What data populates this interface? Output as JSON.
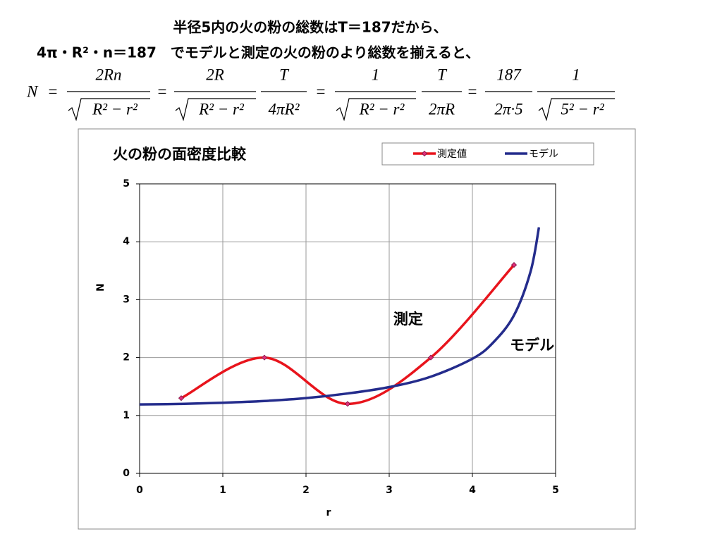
{
  "header": {
    "line1": "半径5内の火の粉の総数はT＝187だから、",
    "line2": "4π・R²・n＝187　でモデルと測定の火の粉のより総数を揃えると、"
  },
  "formula": {
    "lhs": "N",
    "equals": "=",
    "fractions": [
      {
        "numerator": "2Rn",
        "denominator": "R² − r²",
        "radical": true
      },
      {
        "numerator": "2R",
        "denominator": "R² − r²",
        "radical": true
      },
      {
        "numerator": "T",
        "denominator": "4πR²",
        "radical": false
      },
      {
        "numerator": "1",
        "denominator": "R² − r²",
        "radical": true
      },
      {
        "numerator": "T",
        "denominator": "2πR",
        "radical": false
      },
      {
        "numerator": "187",
        "denominator": "2π·5",
        "radical": false
      },
      {
        "numerator": "1",
        "denominator": "5² − r²",
        "radical": true
      }
    ]
  },
  "chart_data": {
    "type": "line",
    "title": "火の粉の面密度比較",
    "x_label": "r",
    "y_label": "N",
    "xlim": [
      0,
      5
    ],
    "xticks": [
      0,
      1,
      2,
      3,
      4,
      5
    ],
    "ylim": [
      0,
      5
    ],
    "yticks": [
      0,
      1,
      2,
      3,
      4,
      5
    ],
    "grid": true,
    "legend": "top-right",
    "series": [
      {
        "name": "測定値",
        "color": "#e8141c",
        "markers": true,
        "x": [
          0.5,
          1.5,
          2.5,
          3.5,
          4.5
        ],
        "values": [
          1.3,
          2.0,
          1.2,
          2.0,
          3.6
        ]
      },
      {
        "name": "モデル",
        "color": "#242c8c",
        "markers": false,
        "x": [
          0,
          0.5,
          1,
          1.5,
          2,
          2.5,
          3,
          3.5,
          4,
          4.25,
          4.5,
          4.7,
          4.8
        ],
        "values": [
          1.19,
          1.2,
          1.22,
          1.25,
          1.3,
          1.38,
          1.49,
          1.67,
          1.98,
          2.26,
          2.73,
          3.49,
          4.25
        ]
      }
    ],
    "annotations": [
      {
        "text": "測定",
        "x": 3.05,
        "y": 2.65
      },
      {
        "text": "モデル",
        "x": 4.45,
        "y": 2.2
      }
    ]
  }
}
